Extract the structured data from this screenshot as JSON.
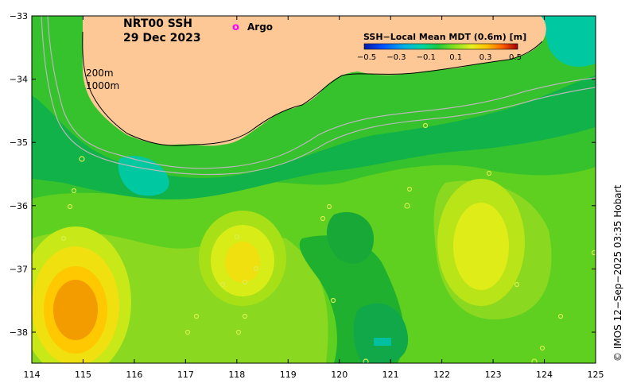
{
  "title": {
    "line1": "NRT00 SSH",
    "line2": "29 Dec 2023"
  },
  "legend": {
    "argo_symbol": "o",
    "argo_label": "Argo",
    "argo_color": "#ff00ff"
  },
  "contours": {
    "label_200": "200m",
    "label_1000": "1000m"
  },
  "colorbar": {
    "title": "SSH−Local Mean MDT (0.6m) [m]",
    "ticks": [
      "−0.5",
      "−0.3",
      "−0.1",
      "0.1",
      "0.3",
      "0.5"
    ],
    "colors": [
      "#001aa8",
      "#0050ff",
      "#00b0e8",
      "#00d8a0",
      "#20c840",
      "#7ee020",
      "#e8f020",
      "#ffc000",
      "#ff6000",
      "#d01010",
      "#a00000"
    ]
  },
  "axes": {
    "x_ticks": [
      "114",
      "115",
      "116",
      "117",
      "118",
      "119",
      "120",
      "121",
      "122",
      "123",
      "124",
      "125"
    ],
    "y_ticks": [
      "−33",
      "−34",
      "−35",
      "−36",
      "−37",
      "−38"
    ]
  },
  "credit": "© IMOS 12−Sep−2025 03:35 Hobart",
  "colors": {
    "land": "#fdc896",
    "sea_base": "#2ec030",
    "contour_line": "#b8b8b8"
  }
}
